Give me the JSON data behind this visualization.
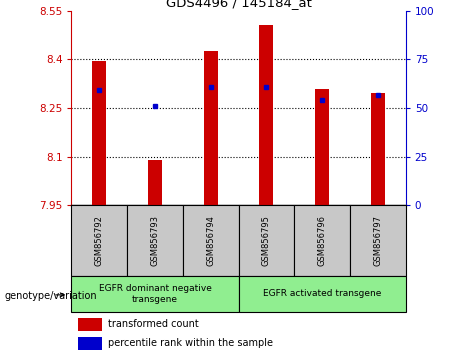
{
  "title": "GDS4496 / 145184_at",
  "samples": [
    "GSM856792",
    "GSM856793",
    "GSM856794",
    "GSM856795",
    "GSM856796",
    "GSM856797"
  ],
  "red_values": [
    8.395,
    8.09,
    8.425,
    8.505,
    8.31,
    8.295
  ],
  "blue_values": [
    8.305,
    8.255,
    8.315,
    8.315,
    8.275,
    8.29
  ],
  "ylim_left": [
    7.95,
    8.55
  ],
  "ylim_right": [
    0,
    100
  ],
  "yticks_left": [
    7.95,
    8.1,
    8.25,
    8.4,
    8.55
  ],
  "yticks_right": [
    0,
    25,
    50,
    75,
    100
  ],
  "grid_values": [
    8.1,
    8.25,
    8.4
  ],
  "bar_width": 0.25,
  "red_color": "#CC0000",
  "blue_color": "#0000CC",
  "left_axis_color": "#CC0000",
  "right_axis_color": "#0000CC",
  "legend_red_label": "transformed count",
  "legend_blue_label": "percentile rank within the sample",
  "xlabel_left": "genotype/variation",
  "sample_box_color": "#C8C8C8",
  "group_box_color": "#90EE90",
  "base_value": 7.95,
  "group_splits": [
    3
  ],
  "group_labels": [
    "EGFR dominant negative\ntransgene",
    "EGFR activated transgene"
  ]
}
